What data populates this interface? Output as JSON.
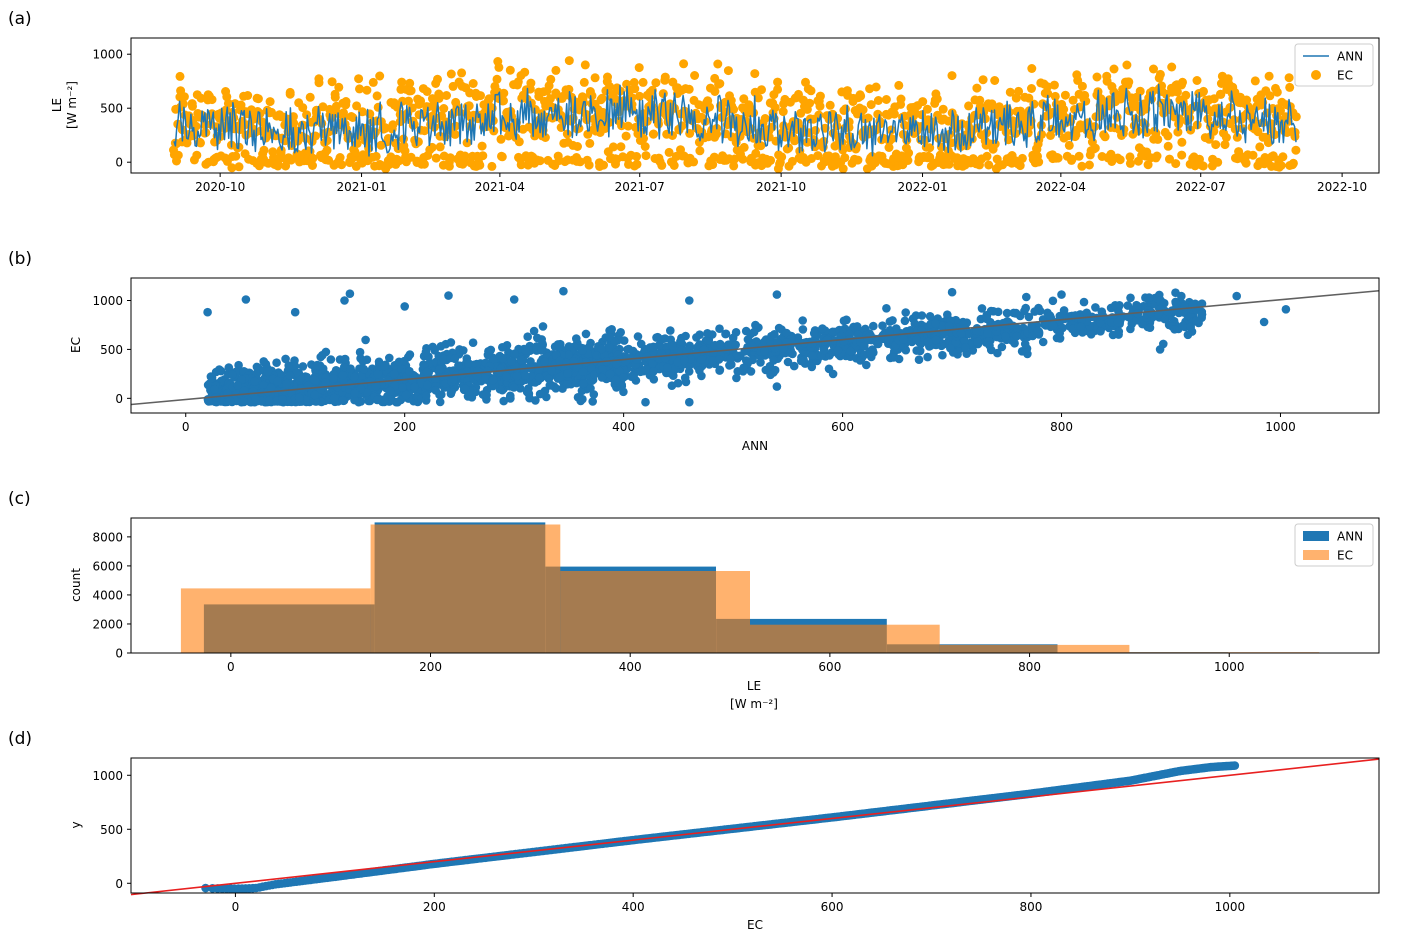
{
  "figure": {
    "panel_labels": [
      "(a)",
      "(b)",
      "(c)",
      "(d)"
    ]
  },
  "colors": {
    "blue": "#1f77b4",
    "orange": "#ffa500",
    "hist_orange": "#ff7f0e",
    "fit_line_b": "#606060",
    "ref_line_d": "#e82020"
  },
  "chart_data": [
    {
      "panel": "(a)",
      "type": "line",
      "xlabel": "",
      "ylabel": "LE",
      "ylabel_unit": "[W m⁻²]",
      "x_tick_labels": [
        "2020-10",
        "2021-01",
        "2021-04",
        "2021-07",
        "2021-10",
        "2022-01",
        "2022-04",
        "2022-07",
        "2022-10"
      ],
      "x_tick_dates": [
        "2020-10-01",
        "2021-01-01",
        "2021-04-01",
        "2021-07-01",
        "2021-10-01",
        "2022-01-01",
        "2022-04-01",
        "2022-07-01",
        "2022-10-01"
      ],
      "xlim": [
        "2020-08-04",
        "2022-10-25"
      ],
      "ylim": [
        -100,
        1150
      ],
      "y_ticks": [
        0,
        500,
        1000
      ],
      "data_range": [
        "2020-09-01",
        "2022-09-01"
      ],
      "legend": {
        "placement": "upper right",
        "entries": [
          "ANN",
          "EC"
        ]
      },
      "series": [
        {
          "name": "ANN",
          "style": "line",
          "color": "#1f77b4",
          "typical_range": [
            0,
            800
          ]
        },
        {
          "name": "EC",
          "style": "scatter",
          "color": "#ffa500",
          "typical_range": [
            -60,
            1090
          ]
        }
      ],
      "grid": false
    },
    {
      "panel": "(b)",
      "type": "scatter",
      "xlabel": "ANN",
      "ylabel": "EC",
      "xlim": [
        -50,
        1090
      ],
      "ylim": [
        -150,
        1230
      ],
      "x_ticks": [
        0,
        200,
        400,
        600,
        800,
        1000
      ],
      "y_ticks": [
        0,
        500,
        1000
      ],
      "fit_line": {
        "slope": 1.02,
        "intercept": -12
      },
      "scatter_extent": {
        "x": [
          -30,
          1005
        ],
        "y": [
          -60,
          1090
        ]
      },
      "outlier_points": [
        [
          20,
          880
        ],
        [
          55,
          1010
        ],
        [
          100,
          880
        ],
        [
          145,
          1000
        ],
        [
          150,
          1070
        ],
        [
          200,
          940
        ],
        [
          240,
          1050
        ],
        [
          300,
          1010
        ],
        [
          345,
          1095
        ],
        [
          460,
          1000
        ],
        [
          540,
          1060
        ],
        [
          640,
          920
        ],
        [
          700,
          1085
        ],
        [
          800,
          1060
        ],
        [
          880,
          1030
        ],
        [
          960,
          1045
        ],
        [
          1005,
          910
        ],
        [
          985,
          780
        ],
        [
          890,
          500
        ],
        [
          420,
          -40
        ],
        [
          460,
          -40
        ],
        [
          540,
          120
        ]
      ],
      "grid": false
    },
    {
      "panel": "(c)",
      "type": "bar",
      "subtype": "histogram",
      "xlabel": "LE",
      "xlabel_unit": "[W m⁻²]",
      "ylabel": "count",
      "xlim": [
        -100,
        1150
      ],
      "ylim": [
        0,
        9300
      ],
      "x_ticks": [
        0,
        200,
        400,
        600,
        800,
        1000
      ],
      "y_ticks": [
        0,
        2000,
        4000,
        6000,
        8000
      ],
      "legend": {
        "placement": "upper right",
        "entries": [
          "ANN",
          "EC"
        ]
      },
      "series": [
        {
          "name": "ANN",
          "color": "#1f77b4",
          "bin_edges": [
            -27,
            144,
            315,
            486,
            657,
            828,
            999
          ],
          "counts": [
            3350,
            9000,
            5950,
            2350,
            600,
            50
          ]
        },
        {
          "name": "EC",
          "color": "#ff7f0e",
          "alpha": 0.6,
          "bin_edges": [
            -50,
            140,
            330,
            520,
            710,
            900,
            1090
          ],
          "counts": [
            4450,
            8850,
            5650,
            1950,
            560,
            55
          ]
        }
      ],
      "grid": false
    },
    {
      "panel": "(d)",
      "type": "scatter",
      "subtype": "qq",
      "xlabel": "EC",
      "ylabel": "y",
      "xlim": [
        -105,
        1150
      ],
      "ylim": [
        -90,
        1160
      ],
      "x_ticks": [
        0,
        200,
        400,
        600,
        800,
        1000
      ],
      "y_ticks": [
        0,
        500,
        1000
      ],
      "reference_line": {
        "slope": 1,
        "intercept": 0
      },
      "quantile_curve": [
        [
          -30,
          -45
        ],
        [
          0,
          -50
        ],
        [
          20,
          -45
        ],
        [
          40,
          -10
        ],
        [
          100,
          60
        ],
        [
          200,
          180
        ],
        [
          300,
          290
        ],
        [
          400,
          400
        ],
        [
          500,
          505
        ],
        [
          600,
          610
        ],
        [
          700,
          720
        ],
        [
          800,
          830
        ],
        [
          900,
          950
        ],
        [
          950,
          1040
        ],
        [
          980,
          1075
        ],
        [
          1005,
          1090
        ]
      ],
      "grid": false
    }
  ]
}
